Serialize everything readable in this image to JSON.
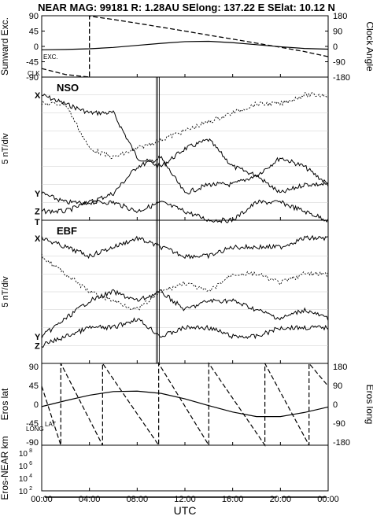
{
  "header": {
    "title": "NEAR MAG: 99181  R: 1.28AU  SElong: 137.22 E  SElat:   10.12 N"
  },
  "chart_data": [
    {
      "type": "line",
      "panel": "angles",
      "left_axis": {
        "label": "Sunward Exc.",
        "ticks": [
          "90",
          "45",
          "0",
          "-45",
          "-90"
        ],
        "range": [
          -90,
          90
        ]
      },
      "right_axis": {
        "label": "Clock Angle",
        "ticks": [
          "180",
          "90",
          "0",
          "-90",
          "-180"
        ],
        "range": [
          -180,
          180
        ]
      },
      "annotations": [
        "EXC.",
        "CLK"
      ],
      "x": [
        0,
        2,
        4,
        6,
        8,
        10,
        12,
        14,
        16,
        18,
        20,
        22,
        24
      ],
      "series": [
        {
          "name": "EXC.",
          "style": "solid",
          "values": [
            -10,
            -9,
            -7,
            -3,
            3,
            9,
            14,
            15,
            11,
            5,
            -1,
            -6,
            -8
          ]
        },
        {
          "name": "CLK",
          "style": "dashed",
          "values": [
            -130,
            -165,
            178,
            158,
            136,
            113,
            90,
            66,
            43,
            19,
            -5,
            -30,
            -60
          ]
        }
      ]
    },
    {
      "type": "line",
      "panel": "NSO",
      "label": "NSO",
      "ylabel": "5 nT/div",
      "series": [
        {
          "name": "X",
          "values": [
            2,
            3,
            4,
            4,
            9,
            10,
            8,
            7,
            10,
            11,
            9,
            10,
            12
          ]
        },
        {
          "name": "Y",
          "values": [
            13,
            14,
            14,
            13,
            10,
            9,
            13,
            12,
            12,
            11,
            13,
            12,
            12
          ]
        },
        {
          "name": "Z",
          "values": [
            15,
            15,
            14,
            14,
            15,
            14,
            15,
            16,
            16,
            14,
            14,
            15,
            16
          ]
        },
        {
          "name": "",
          "values": [
            3,
            3,
            8,
            9,
            8,
            7,
            6,
            5,
            4,
            3,
            3,
            2,
            2
          ]
        }
      ]
    },
    {
      "type": "line",
      "panel": "EBF",
      "label": "EBF",
      "ylabel": "5 nT/div",
      "extra_labels": [
        "T"
      ],
      "series": [
        {
          "name": "X",
          "values": [
            2,
            3,
            4,
            3,
            2,
            3,
            4,
            4,
            3,
            3,
            3,
            2,
            2
          ]
        },
        {
          "name": "Y",
          "values": [
            13,
            11,
            9,
            8,
            9,
            8,
            10,
            9,
            9,
            10,
            11,
            10,
            11
          ]
        },
        {
          "name": "Z",
          "values": [
            14,
            13,
            12,
            12,
            11,
            13,
            12,
            12,
            13,
            13,
            12,
            12,
            12
          ]
        },
        {
          "name": "",
          "values": [
            4,
            6,
            8,
            9,
            10,
            8,
            7,
            8,
            6,
            6,
            7,
            6,
            6
          ]
        }
      ]
    },
    {
      "type": "line",
      "panel": "eros",
      "left_axis": {
        "label": "Eros lat",
        "ticks": [
          "90",
          "45",
          "0",
          "-45",
          "-90"
        ],
        "range": [
          -90,
          90
        ]
      },
      "right_axis": {
        "label": "Eros long",
        "ticks": [
          "180",
          "90",
          "0",
          "-90",
          "-180"
        ],
        "range": [
          -180,
          180
        ]
      },
      "annotations": [
        "LAT",
        "LONG"
      ],
      "x": [
        0,
        2,
        4,
        6,
        8,
        10,
        12,
        14,
        16,
        18,
        20,
        22,
        24
      ],
      "series": [
        {
          "name": "LAT",
          "style": "solid",
          "values": [
            -5,
            8,
            20,
            28,
            29,
            24,
            12,
            -3,
            -17,
            -27,
            -27,
            -18,
            -6
          ]
        },
        {
          "name": "LONG",
          "style": "dashed",
          "values": [
            80,
            -160,
            60,
            -180,
            100,
            -140,
            110,
            -100,
            120,
            -80,
            140,
            -60,
            80
          ]
        }
      ]
    },
    {
      "type": "line",
      "panel": "distance",
      "left_axis": {
        "label": "Eros-NEAR km",
        "ticks": [
          "10^8",
          "10^6",
          "10^4",
          "10^2"
        ],
        "scale": "log",
        "range": [
          10,
          100000000
        ]
      },
      "x": [
        0,
        4,
        8,
        12,
        16,
        20,
        24
      ],
      "series": [
        {
          "name": "",
          "values": [
            50,
            50,
            50,
            50,
            50,
            50,
            50
          ]
        }
      ]
    }
  ],
  "xaxis": {
    "ticks": [
      "00:00",
      "04:00",
      "08:00",
      "12:00",
      "16:00",
      "20:00",
      "00:00"
    ],
    "label": "UTC"
  }
}
